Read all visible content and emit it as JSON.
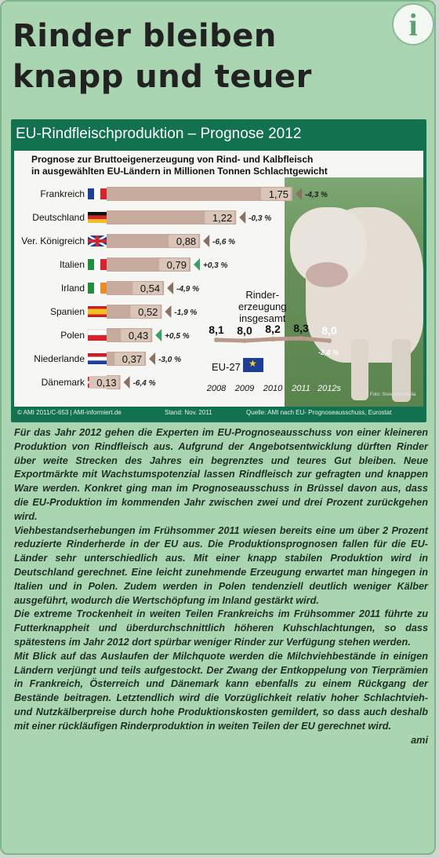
{
  "icon": {
    "glyph": "i"
  },
  "headline": {
    "line1": "Rinder bleiben",
    "line2": "knapp und teuer"
  },
  "infographic": {
    "title": "EU-Rindfleischproduktion – Prognose 2012",
    "subtitle_line1": "Prognose zur Bruttoeigenerzeugung von Rind- und Kalbfleisch",
    "subtitle_line2": "in ausgewählten EU-Ländern in Millionen Tonnen Schlachtgewicht",
    "photo_credit": "Foto: Snowshill/fotolia",
    "footer_copyright": "© AMI 2011/C-653 | AMI-informiert.de",
    "footer_date": "Stand: Nov. 2011",
    "footer_source": "Quelle: AMI nach EU- Prognoseausschuss, Eurostat"
  },
  "chart_data": [
    {
      "type": "bar",
      "orientation": "horizontal",
      "categories": [
        "Frankreich",
        "Deutschland",
        "Ver. Königreich",
        "Italien",
        "Irland",
        "Spanien",
        "Polen",
        "Niederlande",
        "Dänemark"
      ],
      "values": [
        1.75,
        1.22,
        0.88,
        0.79,
        0.54,
        0.52,
        0.43,
        0.37,
        0.13
      ],
      "value_labels": [
        "1,75",
        "1,22",
        "0,88",
        "0,79",
        "0,54",
        "0,52",
        "0,43",
        "0,37",
        "0,13"
      ],
      "changes": [
        "-4,3 %",
        "-0,3 %",
        "-6,6 %",
        "+0,3 %",
        "-4,9 %",
        "-1,9 %",
        "+0,5 %",
        "-3,0 %",
        "-6,4 %"
      ],
      "change_direction": [
        "down",
        "down",
        "down",
        "up",
        "down",
        "down",
        "up",
        "down",
        "down"
      ],
      "flag_icons": [
        "flag-france-icon",
        "flag-germany-icon",
        "flag-uk-icon",
        "flag-italy-icon",
        "flag-ireland-icon",
        "flag-spain-icon",
        "flag-poland-icon",
        "flag-netherlands-icon",
        "flag-denmark-icon"
      ],
      "flag_colors": [
        [
          "#1f3f9a",
          "#ffffff",
          "#d8232a"
        ],
        [
          "#111111",
          "#d8232a",
          "#f2c020"
        ],
        [
          "#1f3f9a",
          "#ffffff",
          "#d8232a"
        ],
        [
          "#1f8f3a",
          "#ffffff",
          "#d8232a"
        ],
        [
          "#1f8f3a",
          "#ffffff",
          "#f08a24"
        ],
        [
          "#c8202a",
          "#f2c020",
          "#c8202a"
        ],
        [
          "#ffffff",
          "#d8232a"
        ],
        [
          "#c8202a",
          "#ffffff",
          "#1f3f9a"
        ],
        [
          "#c8202a",
          "#ffffff"
        ]
      ],
      "xlim": [
        0,
        1.75
      ],
      "bar_color": "#c6ab9d",
      "value_box_color": "#d9c6b9",
      "arrow_down_color": "#8a6f63",
      "arrow_up_color": "#3aa063"
    },
    {
      "type": "line",
      "label_lines": [
        "Rinder-",
        "erzeugung",
        "insgesamt"
      ],
      "region": "EU-27",
      "x": [
        "2008",
        "2009",
        "2010",
        "2011",
        "2012s"
      ],
      "values": [
        8.1,
        8.0,
        8.2,
        8.3,
        8.0
      ],
      "value_labels": [
        "8,1",
        "8,0",
        "8,2",
        "8,3",
        "8,0"
      ],
      "change": "-2,8 %",
      "line_color": "#b9998b",
      "forecast_labels_color": "#ffffff"
    }
  ],
  "article": {
    "paragraphs": [
      "Für das Jahr 2012 gehen die Experten im EU-Prognoseausschuss von einer kleineren Produktion von Rindfleisch aus. Aufgrund der Angebotsentwicklung dürften Rinder über weite Strecken des Jahres ein begrenztes und teures Gut bleiben. Neue Exportmärkte mit Wachstumspotenzial lassen Rindfleisch zur gefragten und knappen Ware werden. Konkret ging man im Prognoseausschuss in Brüssel davon aus, dass die EU-Produktion im kommenden Jahr zwischen zwei und drei Prozent zurückgehen wird.",
      "Viehbestandserhebungen im Frühsommer 2011 wiesen bereits eine um über 2 Prozent reduzierte Rinderherde in der EU aus. Die Produktionsprognosen fallen für die EU-Länder sehr unterschiedlich aus. Mit einer knapp stabilen Produktion wird in Deutschland gerechnet. Eine leicht zunehmende Erzeugung erwartet man hingegen in Italien und in Polen. Zudem werden in Polen tendenziell deutlich weniger Kälber ausgeführt, wodurch die Wertschöpfung im Inland gestärkt wird.",
      "Die extreme Trockenheit in weiten Teilen Frankreichs im Frühsommer 2011 führte zu Futterknappheit und überdurchschnittlich höheren Kuhschlachtungen, so dass spätestens im Jahr 2012 dort spürbar weniger Rinder zur Verfügung stehen werden.",
      "Mit Blick auf das Auslaufen der Milchquote werden die Milchviehbestände in einigen Ländern verjüngt und teils aufgestockt. Der Zwang der Entkoppelung von Tierprämien in Frankreich, Österreich und Dänemark kann ebenfalls zu einem Rückgang der Bestände beitragen. Letztendlich wird die Vorzüglichkeit relativ hoher Schlachtvieh- und Nutzkälberpreise durch hohe Produktionskosten gemildert, so dass auch deshalb mit einer rückläufigen Rinderproduktion in weiten Teilen der EU gerechnet wird."
    ],
    "signoff": "ami"
  }
}
